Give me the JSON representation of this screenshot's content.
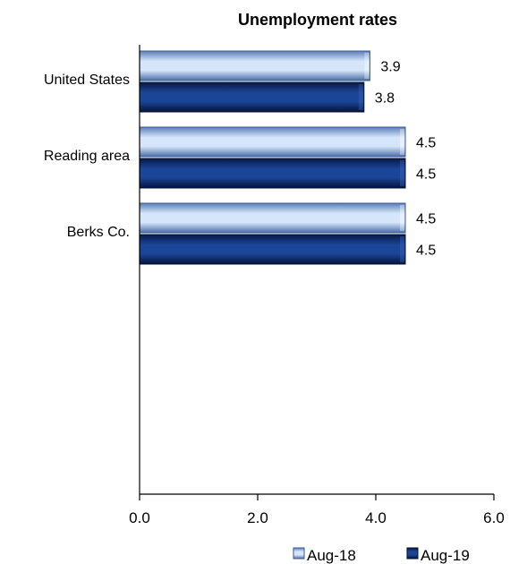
{
  "chart_data": {
    "type": "bar",
    "orientation": "horizontal",
    "title": "Unemployment rates",
    "categories": [
      "United States",
      "Reading area",
      "Berks Co."
    ],
    "series": [
      {
        "name": "Aug-18",
        "values": [
          3.9,
          4.5,
          4.5
        ],
        "color": "#8eb4e3"
      },
      {
        "name": "Aug-19",
        "values": [
          3.8,
          4.5,
          4.5
        ],
        "color": "#0a2a6e"
      }
    ],
    "xlim": [
      0,
      6
    ],
    "xticks": [
      "0.0",
      "2.0",
      "4.0",
      "6.0"
    ],
    "data_labels": [
      [
        "3.9",
        "4.5",
        "4.5"
      ],
      [
        "3.8",
        "4.5",
        "4.5"
      ]
    ],
    "legend_position": "bottom-right",
    "grid": false
  }
}
